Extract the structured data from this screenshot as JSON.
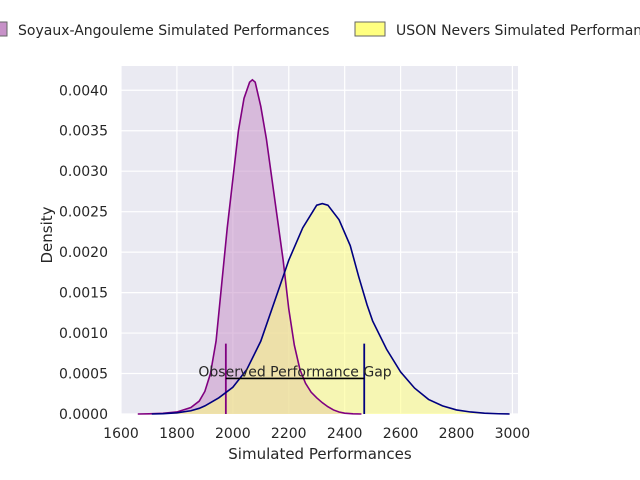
{
  "chart_data": {
    "type": "area",
    "xlabel": "Simulated Performances",
    "ylabel": "Density",
    "xlim": [
      1600,
      3020
    ],
    "ylim": [
      0,
      0.0043
    ],
    "x_ticks": [
      1600,
      1800,
      2000,
      2200,
      2400,
      2600,
      2800,
      3000
    ],
    "x_tick_labels": [
      "1600",
      "1800",
      "2000",
      "2200",
      "2400",
      "2600",
      "2800",
      "3000"
    ],
    "y_ticks": [
      0,
      0.0005,
      0.001,
      0.0015,
      0.002,
      0.0025,
      0.003,
      0.0035,
      0.004
    ],
    "y_tick_labels": [
      "0.0000",
      "0.0005",
      "0.0010",
      "0.0015",
      "0.0020",
      "0.0025",
      "0.0030",
      "0.0035",
      "0.0040"
    ],
    "grid": true,
    "legend_position": "top",
    "series": [
      {
        "name": "Soyaux-Angouleme Simulated Performances",
        "fill": "#c791c8",
        "line": "#800080",
        "marker_x": 1975,
        "points": [
          [
            1660,
            0
          ],
          [
            1700,
            2e-06
          ],
          [
            1750,
            8e-06
          ],
          [
            1800,
            2.5e-05
          ],
          [
            1850,
            8e-05
          ],
          [
            1880,
            0.00016
          ],
          [
            1900,
            0.00028
          ],
          [
            1920,
            0.0005
          ],
          [
            1940,
            0.0009
          ],
          [
            1960,
            0.0016
          ],
          [
            1980,
            0.0023
          ],
          [
            2000,
            0.0029
          ],
          [
            2020,
            0.0035
          ],
          [
            2040,
            0.0039
          ],
          [
            2060,
            0.0041
          ],
          [
            2070,
            0.00413
          ],
          [
            2080,
            0.0041
          ],
          [
            2100,
            0.0038
          ],
          [
            2120,
            0.0034
          ],
          [
            2140,
            0.0029
          ],
          [
            2160,
            0.0024
          ],
          [
            2180,
            0.0019
          ],
          [
            2200,
            0.0013
          ],
          [
            2220,
            0.00085
          ],
          [
            2240,
            0.00055
          ],
          [
            2260,
            0.00038
          ],
          [
            2280,
            0.00027
          ],
          [
            2300,
            0.0002
          ],
          [
            2320,
            0.00014
          ],
          [
            2340,
            9e-05
          ],
          [
            2360,
            5e-05
          ],
          [
            2380,
            2.5e-05
          ],
          [
            2400,
            1e-05
          ],
          [
            2430,
            2e-06
          ],
          [
            2460,
            0
          ]
        ]
      },
      {
        "name": "USON Nevers Simulated Performances",
        "fill": "#ffff80",
        "line": "#000080",
        "marker_x": 2470,
        "points": [
          [
            1710,
            0
          ],
          [
            1750,
            4e-06
          ],
          [
            1800,
            1.5e-05
          ],
          [
            1850,
            4e-05
          ],
          [
            1880,
            7e-05
          ],
          [
            1900,
            0.0001
          ],
          [
            1950,
            0.0002
          ],
          [
            2000,
            0.00033
          ],
          [
            2050,
            0.00055
          ],
          [
            2100,
            0.0009
          ],
          [
            2150,
            0.0014
          ],
          [
            2200,
            0.0019
          ],
          [
            2250,
            0.0023
          ],
          [
            2300,
            0.00258
          ],
          [
            2320,
            0.0026
          ],
          [
            2340,
            0.00258
          ],
          [
            2380,
            0.0024
          ],
          [
            2420,
            0.00208
          ],
          [
            2450,
            0.0017
          ],
          [
            2480,
            0.00135
          ],
          [
            2500,
            0.00115
          ],
          [
            2550,
            0.0008
          ],
          [
            2600,
            0.00052
          ],
          [
            2650,
            0.00032
          ],
          [
            2700,
            0.00018
          ],
          [
            2750,
            0.0001
          ],
          [
            2800,
            5e-05
          ],
          [
            2850,
            2.5e-05
          ],
          [
            2900,
            1e-05
          ],
          [
            2950,
            3e-06
          ],
          [
            2990,
            0
          ]
        ]
      }
    ],
    "annotation": {
      "text": "Observed Performance Gap",
      "x_start": 1975,
      "x_end": 2470,
      "y": 0.00044,
      "marker_height": 0.00087
    }
  }
}
